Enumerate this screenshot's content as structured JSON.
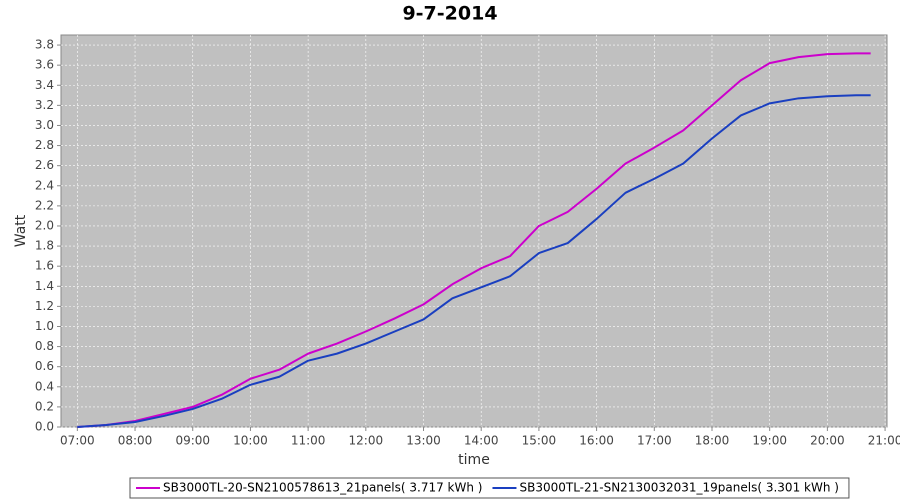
{
  "chart_data": {
    "type": "line",
    "title": "9-7-2014",
    "x_label": "time",
    "y_label": "Watt",
    "x": [
      "07:00",
      "07:30",
      "08:00",
      "08:30",
      "09:00",
      "09:30",
      "10:00",
      "10:30",
      "11:00",
      "11:30",
      "12:00",
      "12:30",
      "13:00",
      "13:30",
      "14:00",
      "14:30",
      "15:00",
      "15:30",
      "16:00",
      "16:30",
      "17:00",
      "17:30",
      "18:00",
      "18:30",
      "19:00",
      "19:30",
      "20:00",
      "20:30",
      "20:45"
    ],
    "series": [
      {
        "name": "SB3000TL-20-SN2100578613_21panels( 3.717 kWh )",
        "color": "#cc00cc",
        "values": [
          0.0,
          0.02,
          0.06,
          0.13,
          0.2,
          0.32,
          0.48,
          0.57,
          0.73,
          0.83,
          0.95,
          1.08,
          1.22,
          1.42,
          1.58,
          1.7,
          2.0,
          2.14,
          2.37,
          2.62,
          2.78,
          2.95,
          3.2,
          3.45,
          3.62,
          3.68,
          3.71,
          3.717,
          3.717
        ]
      },
      {
        "name": "SB3000TL-21-SN2130032031_19panels( 3.301 kWh )",
        "color": "#1a3fc0",
        "values": [
          0.0,
          0.02,
          0.05,
          0.11,
          0.18,
          0.28,
          0.42,
          0.5,
          0.66,
          0.73,
          0.83,
          0.95,
          1.07,
          1.28,
          1.39,
          1.5,
          1.73,
          1.83,
          2.07,
          2.33,
          2.47,
          2.62,
          2.87,
          3.1,
          3.22,
          3.27,
          3.29,
          3.3,
          3.301
        ]
      }
    ],
    "xlim": [
      "06:43",
      "21:02"
    ],
    "xticks": [
      "07:00",
      "08:00",
      "09:00",
      "10:00",
      "11:00",
      "12:00",
      "13:00",
      "14:00",
      "15:00",
      "16:00",
      "17:00",
      "18:00",
      "19:00",
      "20:00",
      "21:00"
    ],
    "ylim": [
      0,
      3.9
    ],
    "yticks": [
      {
        "value": 0,
        "label": "0.0"
      },
      0.2,
      0.4,
      0.6,
      0.8,
      {
        "value": 1,
        "label": "1.0"
      },
      1.2,
      1.4,
      1.6,
      1.8,
      {
        "value": 2,
        "label": "2.0"
      },
      2.2,
      2.4,
      2.6,
      2.8,
      {
        "value": 3,
        "label": "3.0"
      },
      3.2,
      3.4,
      3.6,
      3.8
    ],
    "grid": true,
    "legend_position": "bottom",
    "plot_background": "#c0c0c0"
  }
}
